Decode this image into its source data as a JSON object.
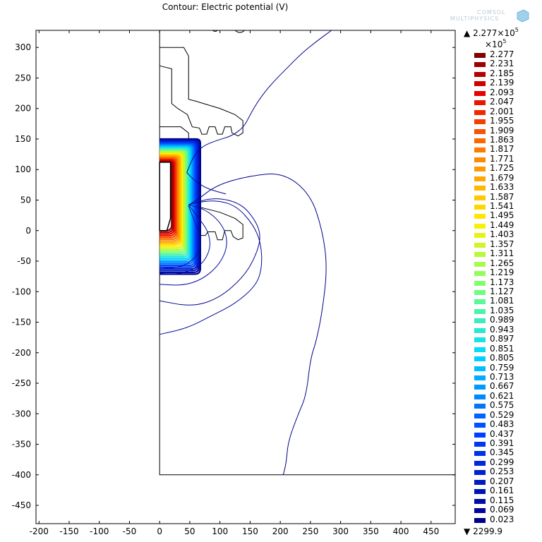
{
  "title": "Contour: Electric potential (V)",
  "logo_text": [
    "COMSOL",
    "MULTIPHYSICS"
  ],
  "chart_data": {
    "type": "contour",
    "title": "Contour: Electric potential (V)",
    "xlim": [
      -205,
      490
    ],
    "ylim": [
      -480,
      328
    ],
    "xticks": [
      -200,
      -150,
      -100,
      -50,
      0,
      50,
      100,
      150,
      200,
      250,
      300,
      350,
      400,
      450
    ],
    "yticks": [
      300,
      250,
      200,
      150,
      100,
      50,
      0,
      -50,
      -100,
      -150,
      -200,
      -250,
      -300,
      -350,
      -400,
      -450
    ],
    "grid": false,
    "colorbar": {
      "max_label": "2.277×10",
      "max_exp": "5",
      "min_label": "2299.9",
      "scale_label": "×10",
      "scale_exp": "5",
      "levels": [
        2.277,
        2.231,
        2.185,
        2.139,
        2.093,
        2.047,
        2.001,
        1.955,
        1.909,
        1.863,
        1.817,
        1.771,
        1.725,
        1.679,
        1.633,
        1.587,
        1.541,
        1.495,
        1.449,
        1.403,
        1.357,
        1.311,
        1.265,
        1.219,
        1.173,
        1.127,
        1.081,
        1.035,
        0.989,
        0.943,
        0.897,
        0.851,
        0.805,
        0.759,
        0.713,
        0.667,
        0.621,
        0.575,
        0.529,
        0.483,
        0.437,
        0.391,
        0.345,
        0.299,
        0.253,
        0.207,
        0.161,
        0.115,
        0.069,
        0.023
      ],
      "colormap": "rainbow"
    },
    "geometry": {
      "domain_box": {
        "x": [
          0,
          490
        ],
        "y": [
          -400,
          328
        ]
      },
      "electrode": [
        [
          0,
          112
        ],
        [
          18,
          112
        ],
        [
          18,
          20
        ],
        [
          12,
          0
        ],
        [
          0,
          0
        ]
      ],
      "insulators": [
        [
          [
            0,
            300
          ],
          [
            40,
            300
          ],
          [
            48,
            286
          ],
          [
            48,
            215
          ],
          [
            60,
            212
          ],
          [
            100,
            200
          ],
          [
            125,
            190
          ],
          [
            138,
            180
          ],
          [
            138,
            160
          ],
          [
            130,
            155
          ],
          [
            120,
            160
          ],
          [
            118,
            170
          ],
          [
            108,
            170
          ],
          [
            104,
            158
          ],
          [
            96,
            158
          ],
          [
            92,
            170
          ],
          [
            82,
            170
          ],
          [
            78,
            158
          ],
          [
            70,
            158
          ],
          [
            66,
            168
          ],
          [
            54,
            170
          ],
          [
            46,
            190
          ],
          [
            30,
            200
          ],
          [
            20,
            208
          ],
          [
            20,
            265
          ],
          [
            0,
            270
          ]
        ],
        [
          [
            0,
            170
          ],
          [
            35,
            170
          ],
          [
            48,
            160
          ],
          [
            50,
            30
          ],
          [
            60,
            40
          ],
          [
            100,
            30
          ],
          [
            125,
            20
          ],
          [
            138,
            10
          ],
          [
            138,
            -12
          ],
          [
            130,
            -15
          ],
          [
            122,
            -10
          ],
          [
            118,
            0
          ],
          [
            108,
            0
          ],
          [
            104,
            -15
          ],
          [
            96,
            -15
          ],
          [
            92,
            -2
          ],
          [
            80,
            -2
          ],
          [
            76,
            -8
          ],
          [
            68,
            -8
          ],
          [
            64,
            0
          ],
          [
            56,
            10
          ],
          [
            50,
            28
          ]
        ]
      ]
    },
    "contours": [
      {
        "level": 0.023,
        "points": [
          [
            205,
            -400
          ],
          [
            210,
            -380
          ],
          [
            213,
            -345
          ],
          [
            230,
            -300
          ],
          [
            243,
            -270
          ],
          [
            250,
            -210
          ],
          [
            260,
            -180
          ],
          [
            270,
            -130
          ],
          [
            278,
            -60
          ],
          [
            270,
            0
          ],
          [
            250,
            60
          ],
          [
            205,
            95
          ],
          [
            150,
            90
          ],
          [
            95,
            75
          ],
          [
            62,
            50
          ],
          [
            48,
            42
          ]
        ]
      },
      {
        "level": 0.069,
        "points": [
          [
            48,
            42
          ],
          [
            90,
            55
          ],
          [
            135,
            45
          ],
          [
            160,
            15
          ],
          [
            168,
            -10
          ],
          [
            160,
            -40
          ],
          [
            140,
            -75
          ],
          [
            100,
            -110
          ],
          [
            55,
            -125
          ],
          [
            0,
            -115
          ]
        ]
      },
      {
        "level": 0.115,
        "points": [
          [
            0,
            -170
          ],
          [
            45,
            -160
          ],
          [
            85,
            -140
          ],
          [
            125,
            -120
          ],
          [
            160,
            -90
          ],
          [
            170,
            -60
          ],
          [
            168,
            -20
          ],
          [
            155,
            10
          ],
          [
            128,
            40
          ],
          [
            95,
            50
          ],
          [
            60,
            46
          ],
          [
            48,
            42
          ]
        ]
      },
      {
        "level": 0.161,
        "points": [
          [
            48,
            42
          ],
          [
            75,
            35
          ],
          [
            100,
            15
          ],
          [
            112,
            -10
          ],
          [
            110,
            -35
          ],
          [
            95,
            -60
          ],
          [
            70,
            -80
          ],
          [
            40,
            -90
          ],
          [
            0,
            -88
          ]
        ]
      },
      {
        "level": 0.207,
        "points": [
          [
            48,
            42
          ],
          [
            65,
            20
          ],
          [
            80,
            0
          ],
          [
            85,
            -25
          ],
          [
            75,
            -50
          ],
          [
            55,
            -65
          ],
          [
            25,
            -72
          ],
          [
            0,
            -70
          ]
        ]
      },
      {
        "level": 0.253,
        "points": [
          [
            48,
            40
          ],
          [
            58,
            15
          ],
          [
            68,
            -10
          ],
          [
            66,
            -35
          ],
          [
            48,
            -55
          ],
          [
            20,
            -62
          ],
          [
            0,
            -60
          ]
        ]
      },
      {
        "level": 0.023,
        "points": [
          [
            285,
            328
          ],
          [
            260,
            310
          ],
          [
            235,
            290
          ],
          [
            210,
            265
          ],
          [
            185,
            240
          ],
          [
            165,
            215
          ],
          [
            150,
            190
          ],
          [
            140,
            170
          ],
          [
            120,
            155
          ],
          [
            95,
            148
          ],
          [
            70,
            138
          ],
          [
            55,
            120
          ],
          [
            45,
            95
          ]
        ]
      },
      {
        "level": 0.023,
        "points": [
          [
            45,
            95
          ],
          [
            60,
            80
          ],
          [
            80,
            68
          ],
          [
            110,
            60
          ]
        ]
      }
    ]
  }
}
